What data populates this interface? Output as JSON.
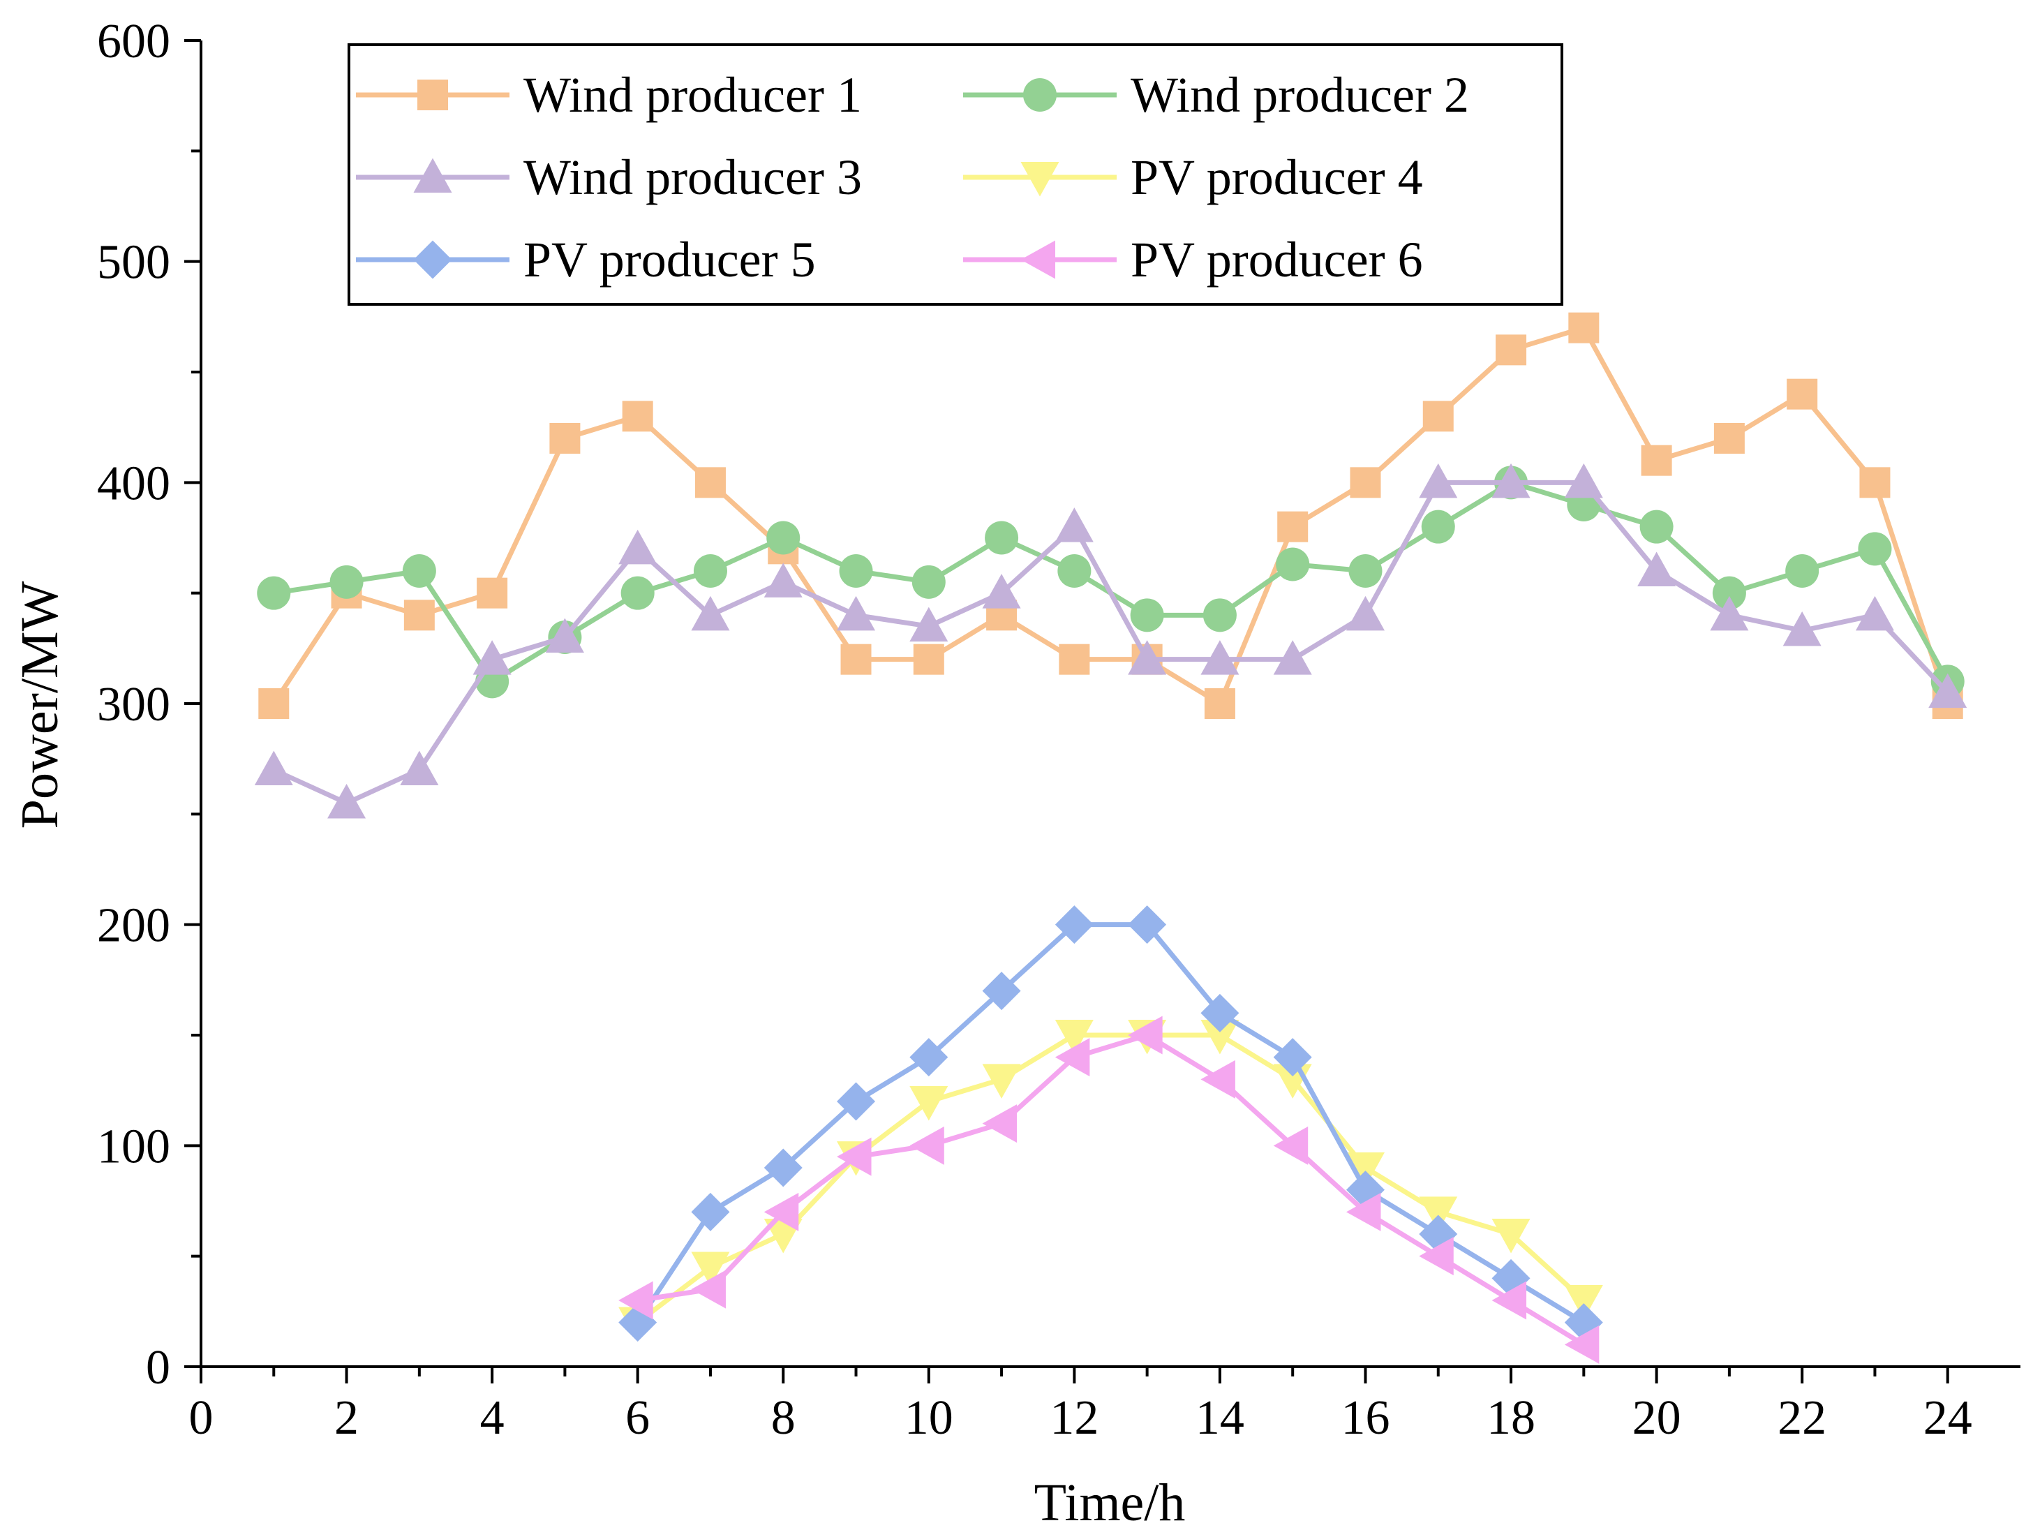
{
  "chart_data": {
    "type": "line",
    "title": "",
    "xlabel": "Time/h",
    "ylabel": "Power/MW",
    "xlim": [
      0,
      25
    ],
    "ylim": [
      0,
      600
    ],
    "xticks": [
      0,
      2,
      4,
      6,
      8,
      10,
      12,
      14,
      16,
      18,
      20,
      22,
      24
    ],
    "yticks": [
      0,
      100,
      200,
      300,
      400,
      500,
      600
    ],
    "grid": false,
    "legend_position": "top-left",
    "series": [
      {
        "name": "Wind producer 1",
        "color": "#F8C18E",
        "marker": "square",
        "x": [
          1,
          2,
          3,
          4,
          5,
          6,
          7,
          8,
          9,
          10,
          11,
          12,
          13,
          14,
          15,
          16,
          17,
          18,
          19,
          20,
          21,
          22,
          23,
          24
        ],
        "y": [
          300,
          350,
          340,
          350,
          420,
          430,
          400,
          370,
          320,
          320,
          340,
          320,
          320,
          300,
          380,
          400,
          430,
          460,
          470,
          410,
          420,
          440,
          400,
          300
        ]
      },
      {
        "name": "Wind producer 2",
        "color": "#93D193",
        "marker": "circle",
        "x": [
          1,
          2,
          3,
          4,
          5,
          6,
          7,
          8,
          9,
          10,
          11,
          12,
          13,
          14,
          15,
          16,
          17,
          18,
          19,
          20,
          21,
          22,
          23,
          24
        ],
        "y": [
          350,
          355,
          360,
          310,
          330,
          350,
          360,
          375,
          360,
          355,
          375,
          360,
          340,
          340,
          363,
          360,
          380,
          400,
          390,
          380,
          350,
          360,
          370,
          310
        ]
      },
      {
        "name": "Wind producer 3",
        "color": "#C3B1D9",
        "marker": "triangle-up",
        "x": [
          1,
          2,
          3,
          4,
          5,
          6,
          7,
          8,
          9,
          10,
          11,
          12,
          13,
          14,
          15,
          16,
          17,
          18,
          19,
          20,
          21,
          22,
          23,
          24
        ],
        "y": [
          270,
          255,
          270,
          320,
          330,
          370,
          340,
          355,
          340,
          335,
          350,
          380,
          320,
          320,
          320,
          340,
          400,
          400,
          400,
          360,
          340,
          333,
          340,
          305
        ]
      },
      {
        "name": "PV producer 4",
        "color": "#FBF58B",
        "marker": "triangle-down",
        "x": [
          6,
          7,
          8,
          9,
          10,
          11,
          12,
          13,
          14,
          15,
          16,
          17,
          18,
          19
        ],
        "y": [
          20,
          45,
          60,
          95,
          120,
          130,
          150,
          150,
          150,
          130,
          90,
          70,
          60,
          30
        ]
      },
      {
        "name": "PV producer 5",
        "color": "#95B3EC",
        "marker": "diamond",
        "x": [
          6,
          7,
          8,
          9,
          10,
          11,
          12,
          13,
          14,
          15,
          16,
          17,
          18,
          19
        ],
        "y": [
          20,
          70,
          90,
          120,
          140,
          170,
          200,
          200,
          160,
          140,
          80,
          60,
          40,
          20
        ]
      },
      {
        "name": "PV producer 6",
        "color": "#F4A6EF",
        "marker": "triangle-left",
        "x": [
          6,
          7,
          8,
          9,
          10,
          11,
          12,
          13,
          14,
          15,
          16,
          17,
          18,
          19
        ],
        "y": [
          30,
          35,
          70,
          95,
          100,
          110,
          140,
          150,
          130,
          100,
          70,
          50,
          30,
          10
        ]
      }
    ]
  }
}
